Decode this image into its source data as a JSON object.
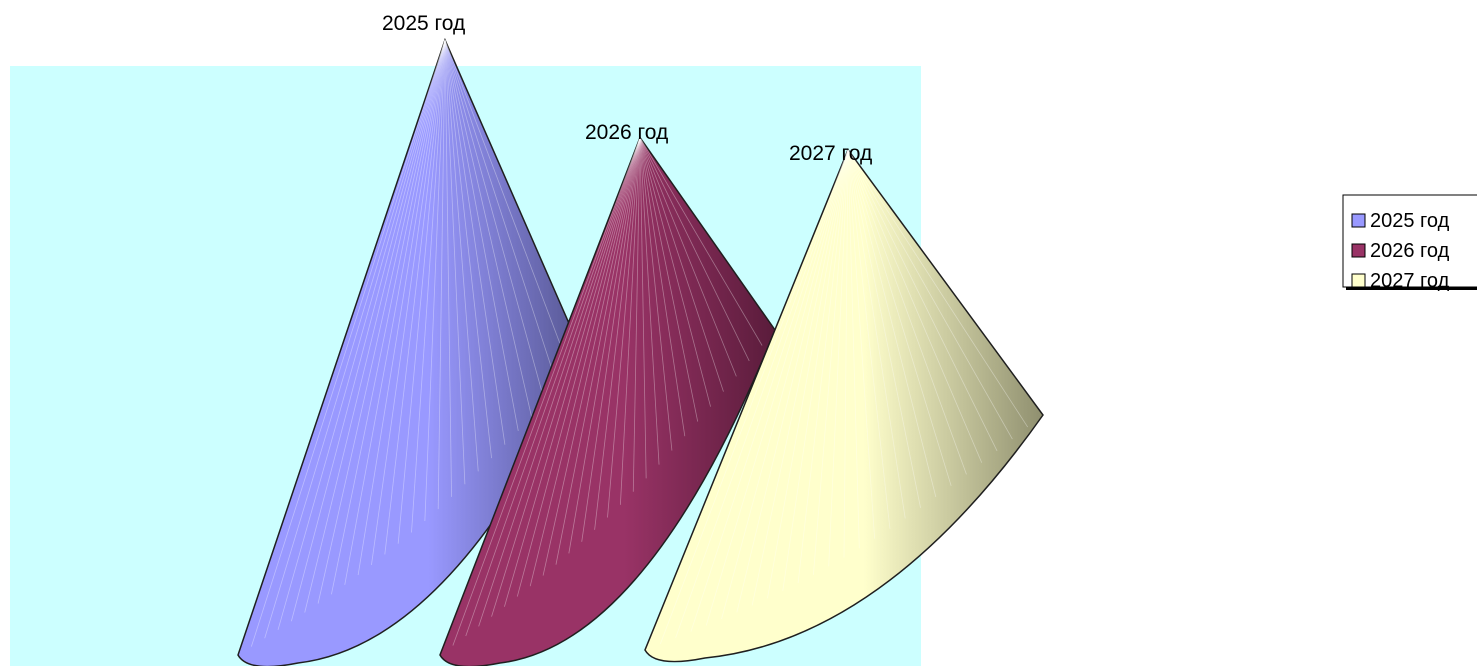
{
  "chart_data": {
    "type": "bar",
    "style": "3d-cone",
    "categories": [
      "2025 год",
      "2026 год",
      "2027 год"
    ],
    "series": [
      {
        "name": "2025 год",
        "value": 100,
        "color": "#9999ff",
        "color_dark": "#55558f"
      },
      {
        "name": "2026 год",
        "value": 84,
        "color": "#993366",
        "color_dark": "#5a1c3b"
      },
      {
        "name": "2027 год",
        "value": 82,
        "color": "#ffffcc",
        "color_dark": "#8f8f6f"
      }
    ],
    "data_labels": [
      "2025 год",
      "2026 год",
      "2027 год"
    ],
    "legend": {
      "position": "right",
      "entries": [
        "2025 год",
        "2026 год",
        "2027 год"
      ]
    },
    "plot_background": "#ccffff",
    "grid": false
  }
}
